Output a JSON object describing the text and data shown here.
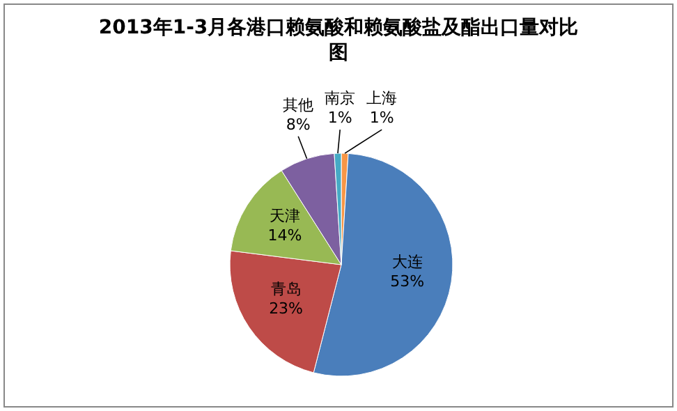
{
  "chart_data": {
    "type": "pie",
    "title": "2013年1-3月各港口赖氨酸和赖氨酸盐及酯出口量对比图",
    "categories": [
      "上海",
      "大连",
      "青岛",
      "天津",
      "其他",
      "南京"
    ],
    "values": [
      1,
      53,
      23,
      14,
      8,
      1
    ],
    "value_labels": [
      "1%",
      "53%",
      "23%",
      "14%",
      "8%",
      "1%"
    ],
    "colors": [
      "#f79646",
      "#4a7ebb",
      "#be4b48",
      "#98b954",
      "#7d60a0",
      "#46aac5"
    ],
    "legend": false
  }
}
